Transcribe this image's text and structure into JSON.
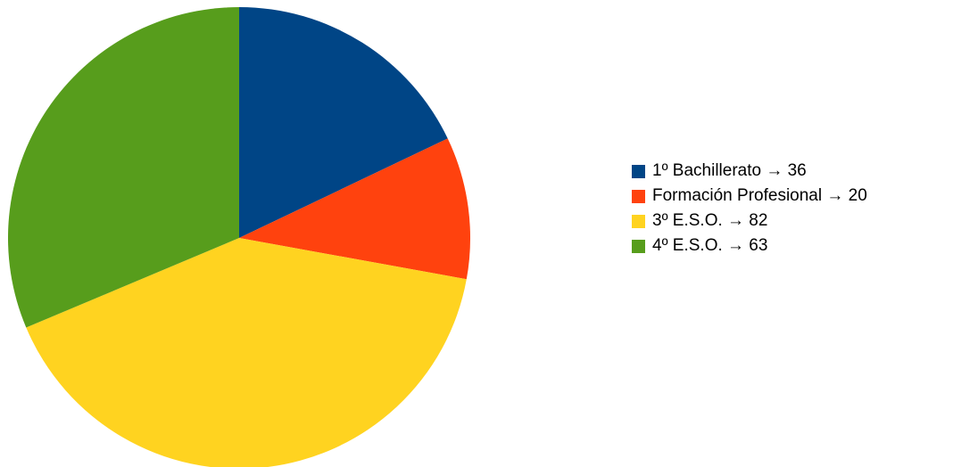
{
  "chart_data": {
    "type": "pie",
    "title": "",
    "categories": [
      "1º Bachillerato",
      "Formación Profesional",
      "3º E.S.O.",
      "4º E.S.O."
    ],
    "values": [
      36,
      20,
      82,
      63
    ],
    "colors": [
      "#004586",
      "#ff420e",
      "#ffd320",
      "#579d1c"
    ],
    "legend_labels": [
      "1º Bachillerato → 36",
      "Formación Profesional → 20",
      "3º E.S.O. → 82",
      "4º E.S.O. → 63"
    ],
    "legend_position": "right",
    "start_angle": "top",
    "direction": "clockwise"
  }
}
